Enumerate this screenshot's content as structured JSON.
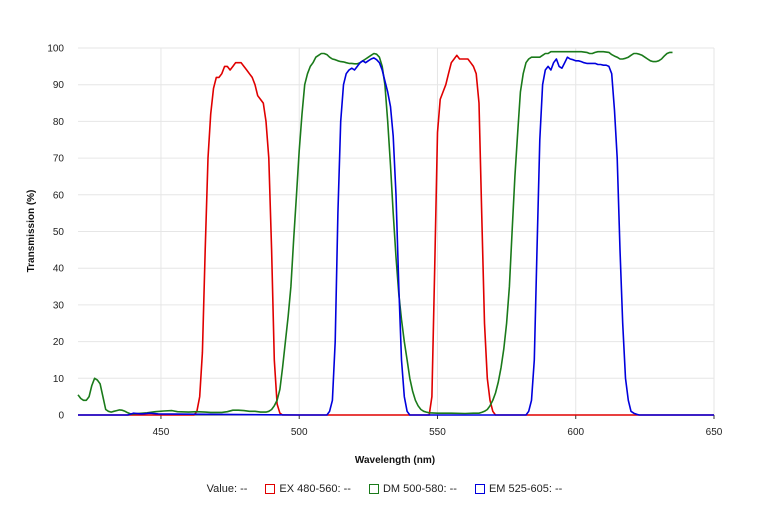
{
  "chart_data": {
    "type": "line",
    "xlabel": "Wavelength (nm)",
    "ylabel": "Transmission (%)",
    "xlim": [
      420,
      650
    ],
    "ylim": [
      0,
      100
    ],
    "xticks": [
      450,
      500,
      550,
      600,
      650
    ],
    "yticks": [
      0,
      10,
      20,
      30,
      40,
      50,
      60,
      70,
      80,
      90,
      100
    ],
    "grid": true,
    "legend_position": "bottom-center",
    "series": [
      {
        "name": "EX 480-560",
        "color": "#e00000",
        "points": [
          [
            420,
            0
          ],
          [
            462,
            0
          ],
          [
            463,
            1
          ],
          [
            464,
            5
          ],
          [
            465,
            17
          ],
          [
            466,
            45
          ],
          [
            467,
            70
          ],
          [
            468,
            82
          ],
          [
            469,
            89
          ],
          [
            470,
            92
          ],
          [
            471,
            92
          ],
          [
            472,
            93
          ],
          [
            473,
            95
          ],
          [
            474,
            95
          ],
          [
            475,
            94
          ],
          [
            476,
            95
          ],
          [
            477,
            96
          ],
          [
            478,
            96
          ],
          [
            479,
            96
          ],
          [
            480,
            95
          ],
          [
            481,
            94
          ],
          [
            482,
            93
          ],
          [
            483,
            92
          ],
          [
            484,
            90
          ],
          [
            485,
            87
          ],
          [
            486,
            86
          ],
          [
            487,
            85
          ],
          [
            488,
            80
          ],
          [
            489,
            70
          ],
          [
            490,
            45
          ],
          [
            491,
            15
          ],
          [
            492,
            3
          ],
          [
            493,
            0.5
          ],
          [
            494,
            0
          ],
          [
            547,
            0
          ],
          [
            548,
            5
          ],
          [
            549,
            40
          ],
          [
            550,
            77
          ],
          [
            551,
            86
          ],
          [
            552,
            88
          ],
          [
            553,
            90
          ],
          [
            554,
            93
          ],
          [
            555,
            96
          ],
          [
            556,
            97
          ],
          [
            557,
            98
          ],
          [
            558,
            97
          ],
          [
            559,
            97
          ],
          [
            560,
            97
          ],
          [
            561,
            97
          ],
          [
            562,
            96
          ],
          [
            563,
            95
          ],
          [
            564,
            93
          ],
          [
            565,
            85
          ],
          [
            566,
            55
          ],
          [
            567,
            25
          ],
          [
            568,
            10
          ],
          [
            569,
            4
          ],
          [
            570,
            1
          ],
          [
            571,
            0
          ],
          [
            650,
            0
          ]
        ]
      },
      {
        "name": "DM 500-580",
        "color": "#1a7a1a",
        "points": [
          [
            420,
            5.5
          ],
          [
            421,
            4.5
          ],
          [
            422,
            4
          ],
          [
            423,
            4
          ],
          [
            424,
            5
          ],
          [
            425,
            8
          ],
          [
            426,
            10
          ],
          [
            427,
            9.5
          ],
          [
            428,
            8.5
          ],
          [
            429,
            5
          ],
          [
            430,
            1.5
          ],
          [
            431,
            1
          ],
          [
            432,
            0.8
          ],
          [
            433,
            1
          ],
          [
            434,
            1.2
          ],
          [
            435,
            1.4
          ],
          [
            436,
            1.3
          ],
          [
            437,
            1
          ],
          [
            438,
            0.6
          ],
          [
            439,
            0.3
          ],
          [
            440,
            0.3
          ],
          [
            445,
            0.6
          ],
          [
            448,
            0.9
          ],
          [
            451,
            1.1
          ],
          [
            454,
            1.2
          ],
          [
            456,
            0.9
          ],
          [
            460,
            0.8
          ],
          [
            463,
            0.9
          ],
          [
            466,
            0.8
          ],
          [
            468,
            0.7
          ],
          [
            472,
            0.7
          ],
          [
            474,
            0.9
          ],
          [
            476,
            1.3
          ],
          [
            478,
            1.3
          ],
          [
            480,
            1.2
          ],
          [
            482,
            1
          ],
          [
            484,
            1
          ],
          [
            486,
            0.8
          ],
          [
            488,
            0.8
          ],
          [
            489,
            1
          ],
          [
            490,
            1.5
          ],
          [
            491,
            2.5
          ],
          [
            492,
            4
          ],
          [
            493,
            7
          ],
          [
            494,
            13
          ],
          [
            495,
            20
          ],
          [
            496,
            27
          ],
          [
            497,
            35
          ],
          [
            498,
            48
          ],
          [
            499,
            60
          ],
          [
            500,
            72
          ],
          [
            501,
            82
          ],
          [
            502,
            90
          ],
          [
            503,
            93
          ],
          [
            504,
            95
          ],
          [
            505,
            96
          ],
          [
            506,
            97.5
          ],
          [
            507,
            98
          ],
          [
            508,
            98.5
          ],
          [
            509,
            98.5
          ],
          [
            510,
            98.2
          ],
          [
            511,
            97.5
          ],
          [
            512,
            97
          ],
          [
            513,
            96.8
          ],
          [
            514,
            96.5
          ],
          [
            515,
            96.3
          ],
          [
            516,
            96.2
          ],
          [
            517,
            96
          ],
          [
            518,
            95.8
          ],
          [
            519,
            95.8
          ],
          [
            520,
            95.7
          ],
          [
            521,
            95.7
          ],
          [
            522,
            96
          ],
          [
            523,
            96.5
          ],
          [
            524,
            97
          ],
          [
            525,
            97.5
          ],
          [
            526,
            98
          ],
          [
            527,
            98.5
          ],
          [
            528,
            98.3
          ],
          [
            529,
            97.5
          ],
          [
            530,
            95
          ],
          [
            531,
            90
          ],
          [
            532,
            80
          ],
          [
            533,
            68
          ],
          [
            534,
            55
          ],
          [
            535,
            43
          ],
          [
            536,
            33
          ],
          [
            537,
            26
          ],
          [
            538,
            20
          ],
          [
            539,
            15
          ],
          [
            540,
            10
          ],
          [
            541,
            6.5
          ],
          [
            542,
            4
          ],
          [
            543,
            2.5
          ],
          [
            544,
            1.5
          ],
          [
            545,
            1
          ],
          [
            546,
            0.8
          ],
          [
            547,
            0.6
          ],
          [
            550,
            0.5
          ],
          [
            555,
            0.5
          ],
          [
            560,
            0.4
          ],
          [
            563,
            0.5
          ],
          [
            565,
            0.5
          ],
          [
            566,
            0.7
          ],
          [
            567,
            1
          ],
          [
            568,
            1.5
          ],
          [
            569,
            2.5
          ],
          [
            570,
            4
          ],
          [
            571,
            6
          ],
          [
            572,
            9
          ],
          [
            573,
            13
          ],
          [
            574,
            18
          ],
          [
            575,
            25
          ],
          [
            576,
            35
          ],
          [
            577,
            50
          ],
          [
            578,
            65
          ],
          [
            579,
            77
          ],
          [
            580,
            88
          ],
          [
            581,
            93
          ],
          [
            582,
            96
          ],
          [
            583,
            97
          ],
          [
            584,
            97.5
          ],
          [
            585,
            97.5
          ],
          [
            586,
            97.5
          ],
          [
            587,
            97.5
          ],
          [
            588,
            98
          ],
          [
            589,
            98.5
          ],
          [
            590,
            98.5
          ],
          [
            591,
            99
          ],
          [
            592,
            99
          ],
          [
            593,
            99
          ],
          [
            594,
            99
          ],
          [
            596,
            99
          ],
          [
            598,
            99
          ],
          [
            600,
            99
          ],
          [
            602,
            99
          ],
          [
            604,
            98.8
          ],
          [
            605,
            98.5
          ],
          [
            606,
            98.5
          ],
          [
            607,
            98.8
          ],
          [
            608,
            99
          ],
          [
            610,
            99
          ],
          [
            612,
            98.8
          ],
          [
            613,
            98.2
          ],
          [
            614,
            97.8
          ],
          [
            615,
            97.5
          ],
          [
            616,
            97
          ],
          [
            617,
            97
          ],
          [
            618,
            97.2
          ],
          [
            619,
            97.5
          ],
          [
            620,
            98
          ],
          [
            621,
            98.5
          ],
          [
            622,
            98.5
          ],
          [
            623,
            98.3
          ],
          [
            624,
            98
          ],
          [
            625,
            97.5
          ],
          [
            626,
            97
          ],
          [
            627,
            96.5
          ],
          [
            628,
            96.3
          ],
          [
            629,
            96.3
          ],
          [
            630,
            96.5
          ],
          [
            631,
            97
          ],
          [
            632,
            97.8
          ],
          [
            633,
            98.5
          ],
          [
            634,
            98.8
          ],
          [
            635,
            98.8
          ]
        ]
      },
      {
        "name": "EM 525-605",
        "color": "#0000dd",
        "points": [
          [
            420,
            0
          ],
          [
            438,
            0
          ],
          [
            440,
            0.5
          ],
          [
            443,
            0.3
          ],
          [
            446,
            0.5
          ],
          [
            449,
            0.3
          ],
          [
            500,
            0
          ],
          [
            510,
            0
          ],
          [
            511,
            1
          ],
          [
            512,
            4
          ],
          [
            513,
            20
          ],
          [
            514,
            55
          ],
          [
            515,
            80
          ],
          [
            516,
            90
          ],
          [
            517,
            93
          ],
          [
            518,
            94
          ],
          [
            519,
            94.5
          ],
          [
            520,
            94
          ],
          [
            521,
            95
          ],
          [
            522,
            96
          ],
          [
            523,
            96.5
          ],
          [
            524,
            96
          ],
          [
            525,
            96.5
          ],
          [
            526,
            97
          ],
          [
            527,
            97.3
          ],
          [
            528,
            96.8
          ],
          [
            529,
            96
          ],
          [
            530,
            94
          ],
          [
            531,
            91
          ],
          [
            532,
            88
          ],
          [
            533,
            84
          ],
          [
            534,
            76
          ],
          [
            535,
            60
          ],
          [
            536,
            35
          ],
          [
            537,
            15
          ],
          [
            538,
            5
          ],
          [
            539,
            1
          ],
          [
            540,
            0
          ],
          [
            582,
            0
          ],
          [
            583,
            1
          ],
          [
            584,
            4
          ],
          [
            585,
            15
          ],
          [
            586,
            45
          ],
          [
            587,
            75
          ],
          [
            588,
            90
          ],
          [
            589,
            94
          ],
          [
            590,
            95
          ],
          [
            591,
            94
          ],
          [
            592,
            96
          ],
          [
            593,
            97
          ],
          [
            594,
            95
          ],
          [
            595,
            94.5
          ],
          [
            596,
            96
          ],
          [
            597,
            97.5
          ],
          [
            598,
            97
          ],
          [
            599,
            96.8
          ],
          [
            600,
            96.5
          ],
          [
            601,
            96.5
          ],
          [
            602,
            96.3
          ],
          [
            603,
            96
          ],
          [
            604,
            95.8
          ],
          [
            605,
            95.8
          ],
          [
            606,
            95.8
          ],
          [
            607,
            95.8
          ],
          [
            608,
            95.5
          ],
          [
            609,
            95.5
          ],
          [
            610,
            95.3
          ],
          [
            611,
            95.3
          ],
          [
            612,
            95
          ],
          [
            613,
            93
          ],
          [
            614,
            83
          ],
          [
            615,
            70
          ],
          [
            616,
            45
          ],
          [
            617,
            25
          ],
          [
            618,
            10
          ],
          [
            619,
            4
          ],
          [
            620,
            1
          ],
          [
            621,
            0.5
          ],
          [
            622,
            0.2
          ],
          [
            623,
            0
          ],
          [
            650,
            0
          ]
        ]
      }
    ]
  },
  "legend": {
    "value_label": "Value:",
    "value_readout": "--",
    "items": [
      {
        "label": "EX 480-560:",
        "readout": "--",
        "color": "#e00000"
      },
      {
        "label": "DM 500-580:",
        "readout": "--",
        "color": "#1a7a1a"
      },
      {
        "label": "EM 525-605:",
        "readout": "--",
        "color": "#0000dd"
      }
    ]
  }
}
